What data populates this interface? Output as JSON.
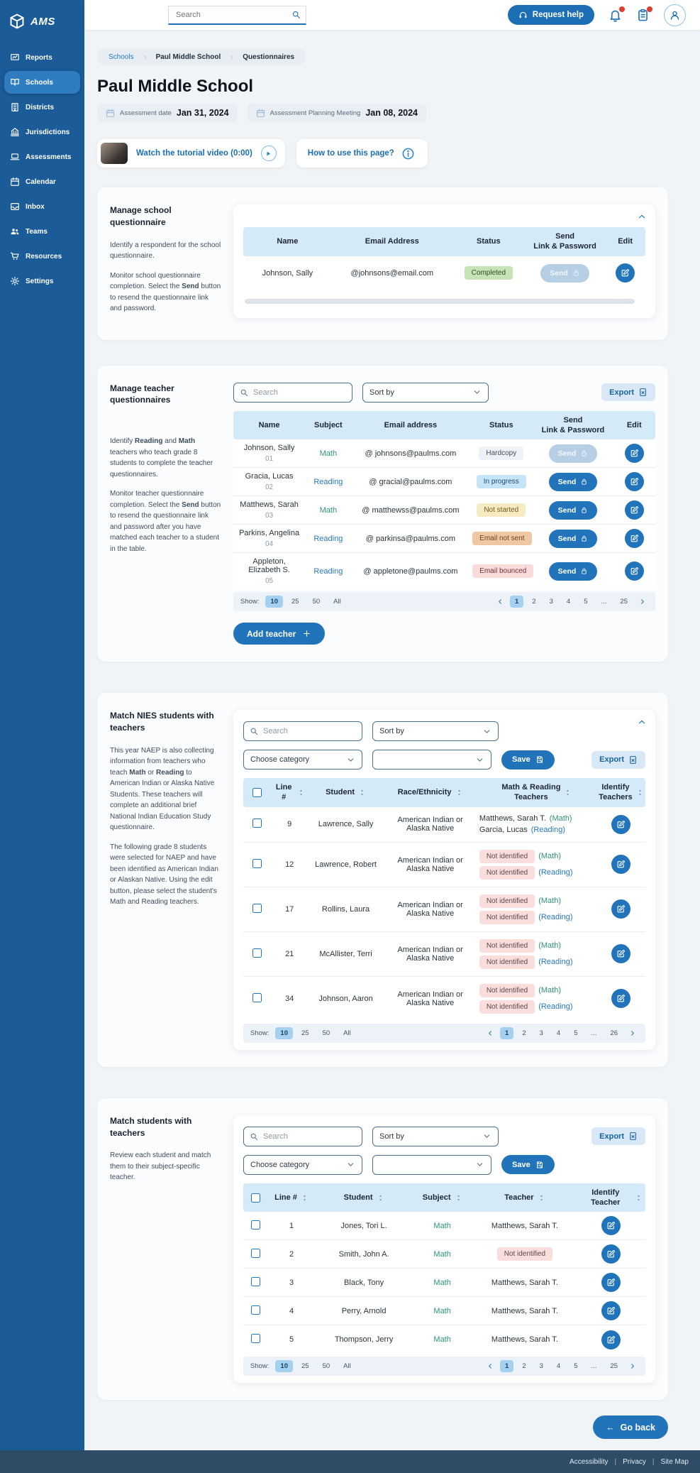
{
  "app": {
    "logo": "AMS"
  },
  "header": {
    "search_placeholder": "Search",
    "request_help_label": "Request help"
  },
  "sidebar": {
    "items": [
      {
        "label": "Reports",
        "icon": "reports-icon",
        "active": false
      },
      {
        "label": "Schools",
        "icon": "schools-icon",
        "active": true
      },
      {
        "label": "Districts",
        "icon": "districts-icon",
        "active": false
      },
      {
        "label": "Jurisdictions",
        "icon": "jurisdictions-icon",
        "active": false
      },
      {
        "label": "Assessments",
        "icon": "assessments-icon",
        "active": false
      },
      {
        "label": "Calendar",
        "icon": "calendar-icon",
        "active": false
      },
      {
        "label": "Inbox",
        "icon": "inbox-icon",
        "active": false
      },
      {
        "label": "Teams",
        "icon": "teams-icon",
        "active": false
      },
      {
        "label": "Resources",
        "icon": "resources-icon",
        "active": false
      },
      {
        "label": "Settings",
        "icon": "settings-icon",
        "active": false
      }
    ]
  },
  "breadcrumb": {
    "items": [
      {
        "label": "Schools",
        "link": true
      },
      {
        "label": "Paul Middle School",
        "link": false
      },
      {
        "label": "Questionnaires",
        "link": false
      }
    ]
  },
  "page": {
    "title": "Paul Middle School",
    "assessment_date_label": "Assessment date",
    "assessment_date": "Jan 31, 2024",
    "planning_label": "Assessment Planning Meeting",
    "planning_date": "Jan 08, 2024",
    "tutorial_label": "Watch the tutorial video (0:00)",
    "howto_label": "How to use this page?"
  },
  "school_section": {
    "title": "Manage school questionnaire",
    "paragraphs": [
      "Identify a respondent for the school questionnaire.",
      "Monitor school questionnaire completion. Select the **Send** button to resend the questionnaire link and password."
    ],
    "headers": [
      "Name",
      "Email Address",
      "Status",
      "Send\nLink & Password",
      "Edit"
    ],
    "row": {
      "name": "Johnson, Sally",
      "email": "@johnsons@email.com",
      "status": "Completed",
      "send_label": "Send",
      "send_enabled": false
    }
  },
  "teacher_section": {
    "title": "Manage teacher questionnaires",
    "paragraphs": [
      "Identify **Reading** and **Math** teachers who teach grade 8 students to complete the teacher questionnaires.",
      "Monitor teacher questionnaire completion. Select the **Send** button to resend the questionnaire link and password after you have matched each teacher to a student in the table."
    ],
    "search_placeholder": "Search",
    "sort_label": "Sort by",
    "export_label": "Export",
    "headers": [
      "Name",
      "Subject",
      "Email address",
      "Status",
      "Send\nLink & Password",
      "Edit"
    ],
    "send_label": "Send",
    "rows": [
      {
        "name": "Johnson, Sally",
        "num": "01",
        "subject": "Math",
        "email": "@ johnsons@paulms.com",
        "status": "Hardcopy",
        "send_enabled": false
      },
      {
        "name": "Gracia, Lucas",
        "num": "02",
        "subject": "Reading",
        "email": "@ gracial@paulms.com",
        "status": "In progress",
        "send_enabled": true
      },
      {
        "name": "Matthews, Sarah",
        "num": "03",
        "subject": "Math",
        "email": "@ matthewss@paulms.com",
        "status": "Not started",
        "send_enabled": true
      },
      {
        "name": "Parkins, Angelina",
        "num": "04",
        "subject": "Reading",
        "email": "@ parkinsa@paulms.com",
        "status": "Email not sent",
        "send_enabled": true
      },
      {
        "name": "Appleton, Elizabeth S.",
        "num": "05",
        "subject": "Reading",
        "email": "@ appletone@paulms.com",
        "status": "Email bounced",
        "send_enabled": true
      }
    ],
    "add_teacher_label": "Add teacher",
    "pagination": {
      "show_label": "Show:",
      "sizes": [
        "10",
        "25",
        "50",
        "All"
      ],
      "active_size": "10",
      "pages": [
        "1",
        "2",
        "3",
        "4",
        "5",
        "...",
        "25"
      ],
      "active_page": "1"
    }
  },
  "nies_section": {
    "title": "Match NIES students with teachers",
    "paragraphs": [
      "This year NAEP is also collecting information from teachers who teach **Math** or **Reading** to American Indian or Alaska Native Students. These teachers will complete an additional brief National Indian Education Study questionnaire.",
      "The following grade 8 students were selected for NAEP and have been identified as American Indian or Alaskan Native. Using the edit button, please select the student's Math and Reading teachers."
    ],
    "search_placeholder": "Search",
    "sort_label": "Sort by",
    "choose_category_label": "Choose category",
    "save_label": "Save",
    "export_label": "Export",
    "headers": [
      "Line #",
      "Student",
      "Race/Ethnicity",
      "Math & Reading\nTeachers",
      "Identify\nTeachers"
    ],
    "math_label": "(Math)",
    "reading_label": "(Reading)",
    "not_identified_label": "Not identified",
    "rows": [
      {
        "line": "9",
        "student": "Lawrence, Sally",
        "race": "American Indian or Alaska Native",
        "math_teacher": "Matthews, Sarah T.",
        "reading_teacher": "Garcia, Lucas"
      },
      {
        "line": "12",
        "student": "Lawrence, Robert",
        "race": "American Indian or Alaska Native",
        "math_teacher": null,
        "reading_teacher": null
      },
      {
        "line": "17",
        "student": "Rollins, Laura",
        "race": "American Indian or Alaska Native",
        "math_teacher": null,
        "reading_teacher": null
      },
      {
        "line": "21",
        "student": "McAllister, Terri",
        "race": "American Indian or Alaska Native",
        "math_teacher": null,
        "reading_teacher": null
      },
      {
        "line": "34",
        "student": "Johnson, Aaron",
        "race": "American Indian or Alaska Native",
        "math_teacher": null,
        "reading_teacher": null
      }
    ],
    "pagination": {
      "show_label": "Show:",
      "sizes": [
        "10",
        "25",
        "50",
        "All"
      ],
      "active_size": "10",
      "pages": [
        "1",
        "2",
        "3",
        "4",
        "5",
        "...",
        "26"
      ],
      "active_page": "1"
    }
  },
  "match_section": {
    "title": "Match students with teachers",
    "paragraphs": [
      "Review each student and match them to their subject-specific teacher."
    ],
    "search_placeholder": "Search",
    "sort_label": "Sort by",
    "choose_category_label": "Choose category",
    "save_label": "Save",
    "export_label": "Export",
    "headers": [
      "Line #",
      "Student",
      "Subject",
      "Teacher",
      "Identify Teacher"
    ],
    "not_identified_label": "Not identified",
    "rows": [
      {
        "line": "1",
        "student": "Jones, Tori L.",
        "subject": "Math",
        "teacher": "Matthews, Sarah T."
      },
      {
        "line": "2",
        "student": "Smith, John A.",
        "subject": "Math",
        "teacher": null
      },
      {
        "line": "3",
        "student": "Black, Tony",
        "subject": "Math",
        "teacher": "Matthews, Sarah T."
      },
      {
        "line": "4",
        "student": "Perry, Arnold",
        "subject": "Math",
        "teacher": "Matthews, Sarah T."
      },
      {
        "line": "5",
        "student": "Thompson, Jerry",
        "subject": "Math",
        "teacher": "Matthews, Sarah T."
      }
    ],
    "pagination": {
      "show_label": "Show:",
      "sizes": [
        "10",
        "25",
        "50",
        "All"
      ],
      "active_size": "10",
      "pages": [
        "1",
        "2",
        "3",
        "4",
        "5",
        "...",
        "25"
      ],
      "active_page": "1"
    }
  },
  "goback": {
    "arrow": "←",
    "label": "Go back"
  },
  "footer": {
    "links": [
      "Accessibility",
      "Privacy",
      "Site Map"
    ],
    "separator": "|"
  },
  "colors": {
    "primary": "#2274ba",
    "sidebar": "#1b5b97",
    "sidebar_active": "#2f7dc0",
    "table_header": "#d5eaf9",
    "math": "#2e9377",
    "reading": "#2579c2",
    "footer": "#2e4c66",
    "status_styles": {
      "Completed": {
        "bg": "#c6e3b8",
        "fg": "#2e4a26"
      },
      "Hardcopy": {
        "bg": "#eef1f6",
        "fg": "#44505c"
      },
      "In progress": {
        "bg": "#c7e3f6",
        "fg": "#1d4e75"
      },
      "Not started": {
        "bg": "#f7ebc4",
        "fg": "#6f5a16"
      },
      "Email not sent": {
        "bg": "#efc7a2",
        "fg": "#6e431c"
      },
      "Email bounced": {
        "bg": "#f9dbdb",
        "fg": "#743232"
      },
      "Not identified": {
        "bg": "#fadede",
        "fg": "#5c4747"
      }
    }
  }
}
